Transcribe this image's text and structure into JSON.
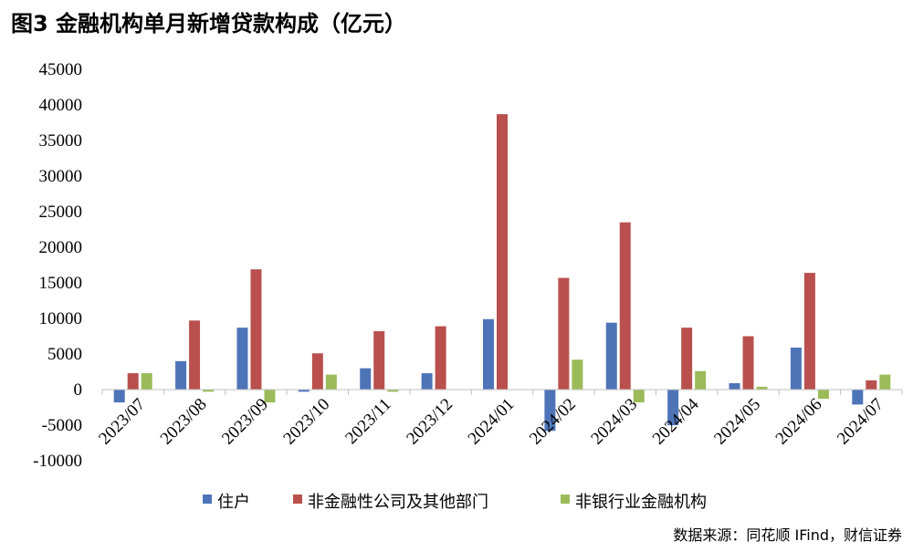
{
  "chart_data": {
    "type": "bar",
    "title": "图3 金融机构单月新增贷款构成（亿元）",
    "categories": [
      "2023/07",
      "2023/08",
      "2023/09",
      "2023/10",
      "2023/11",
      "2023/12",
      "2024/01",
      "2024/02",
      "2024/03",
      "2024/04",
      "2024/05",
      "2024/06",
      "2024/07"
    ],
    "series": [
      {
        "name": "住户",
        "color": "#4E74B8",
        "values": [
          -1800,
          4000,
          8700,
          -300,
          3000,
          2300,
          9900,
          -5800,
          9400,
          -5000,
          900,
          5900,
          -2100
        ]
      },
      {
        "name": "非金融性公司及其他部门",
        "color": "#B9504D",
        "values": [
          2300,
          9700,
          16900,
          5100,
          8200,
          8900,
          38700,
          15700,
          23500,
          8700,
          7500,
          16400,
          1300
        ]
      },
      {
        "name": "非银行业金融机构",
        "color": "#9BBB59",
        "values": [
          2300,
          -300,
          -1800,
          2100,
          -300,
          0,
          0,
          4200,
          -1800,
          2600,
          400,
          -1300,
          2100
        ]
      }
    ],
    "ylim": [
      -10000,
      45000
    ],
    "yticks": [
      "45000",
      "40000",
      "35000",
      "30000",
      "25000",
      "20000",
      "15000",
      "10000",
      "5000",
      "0",
      "-5000",
      "-10000"
    ],
    "grid": false,
    "legend": "bottom"
  },
  "source_note": "数据来源：同花顺 IFind，财信证券"
}
